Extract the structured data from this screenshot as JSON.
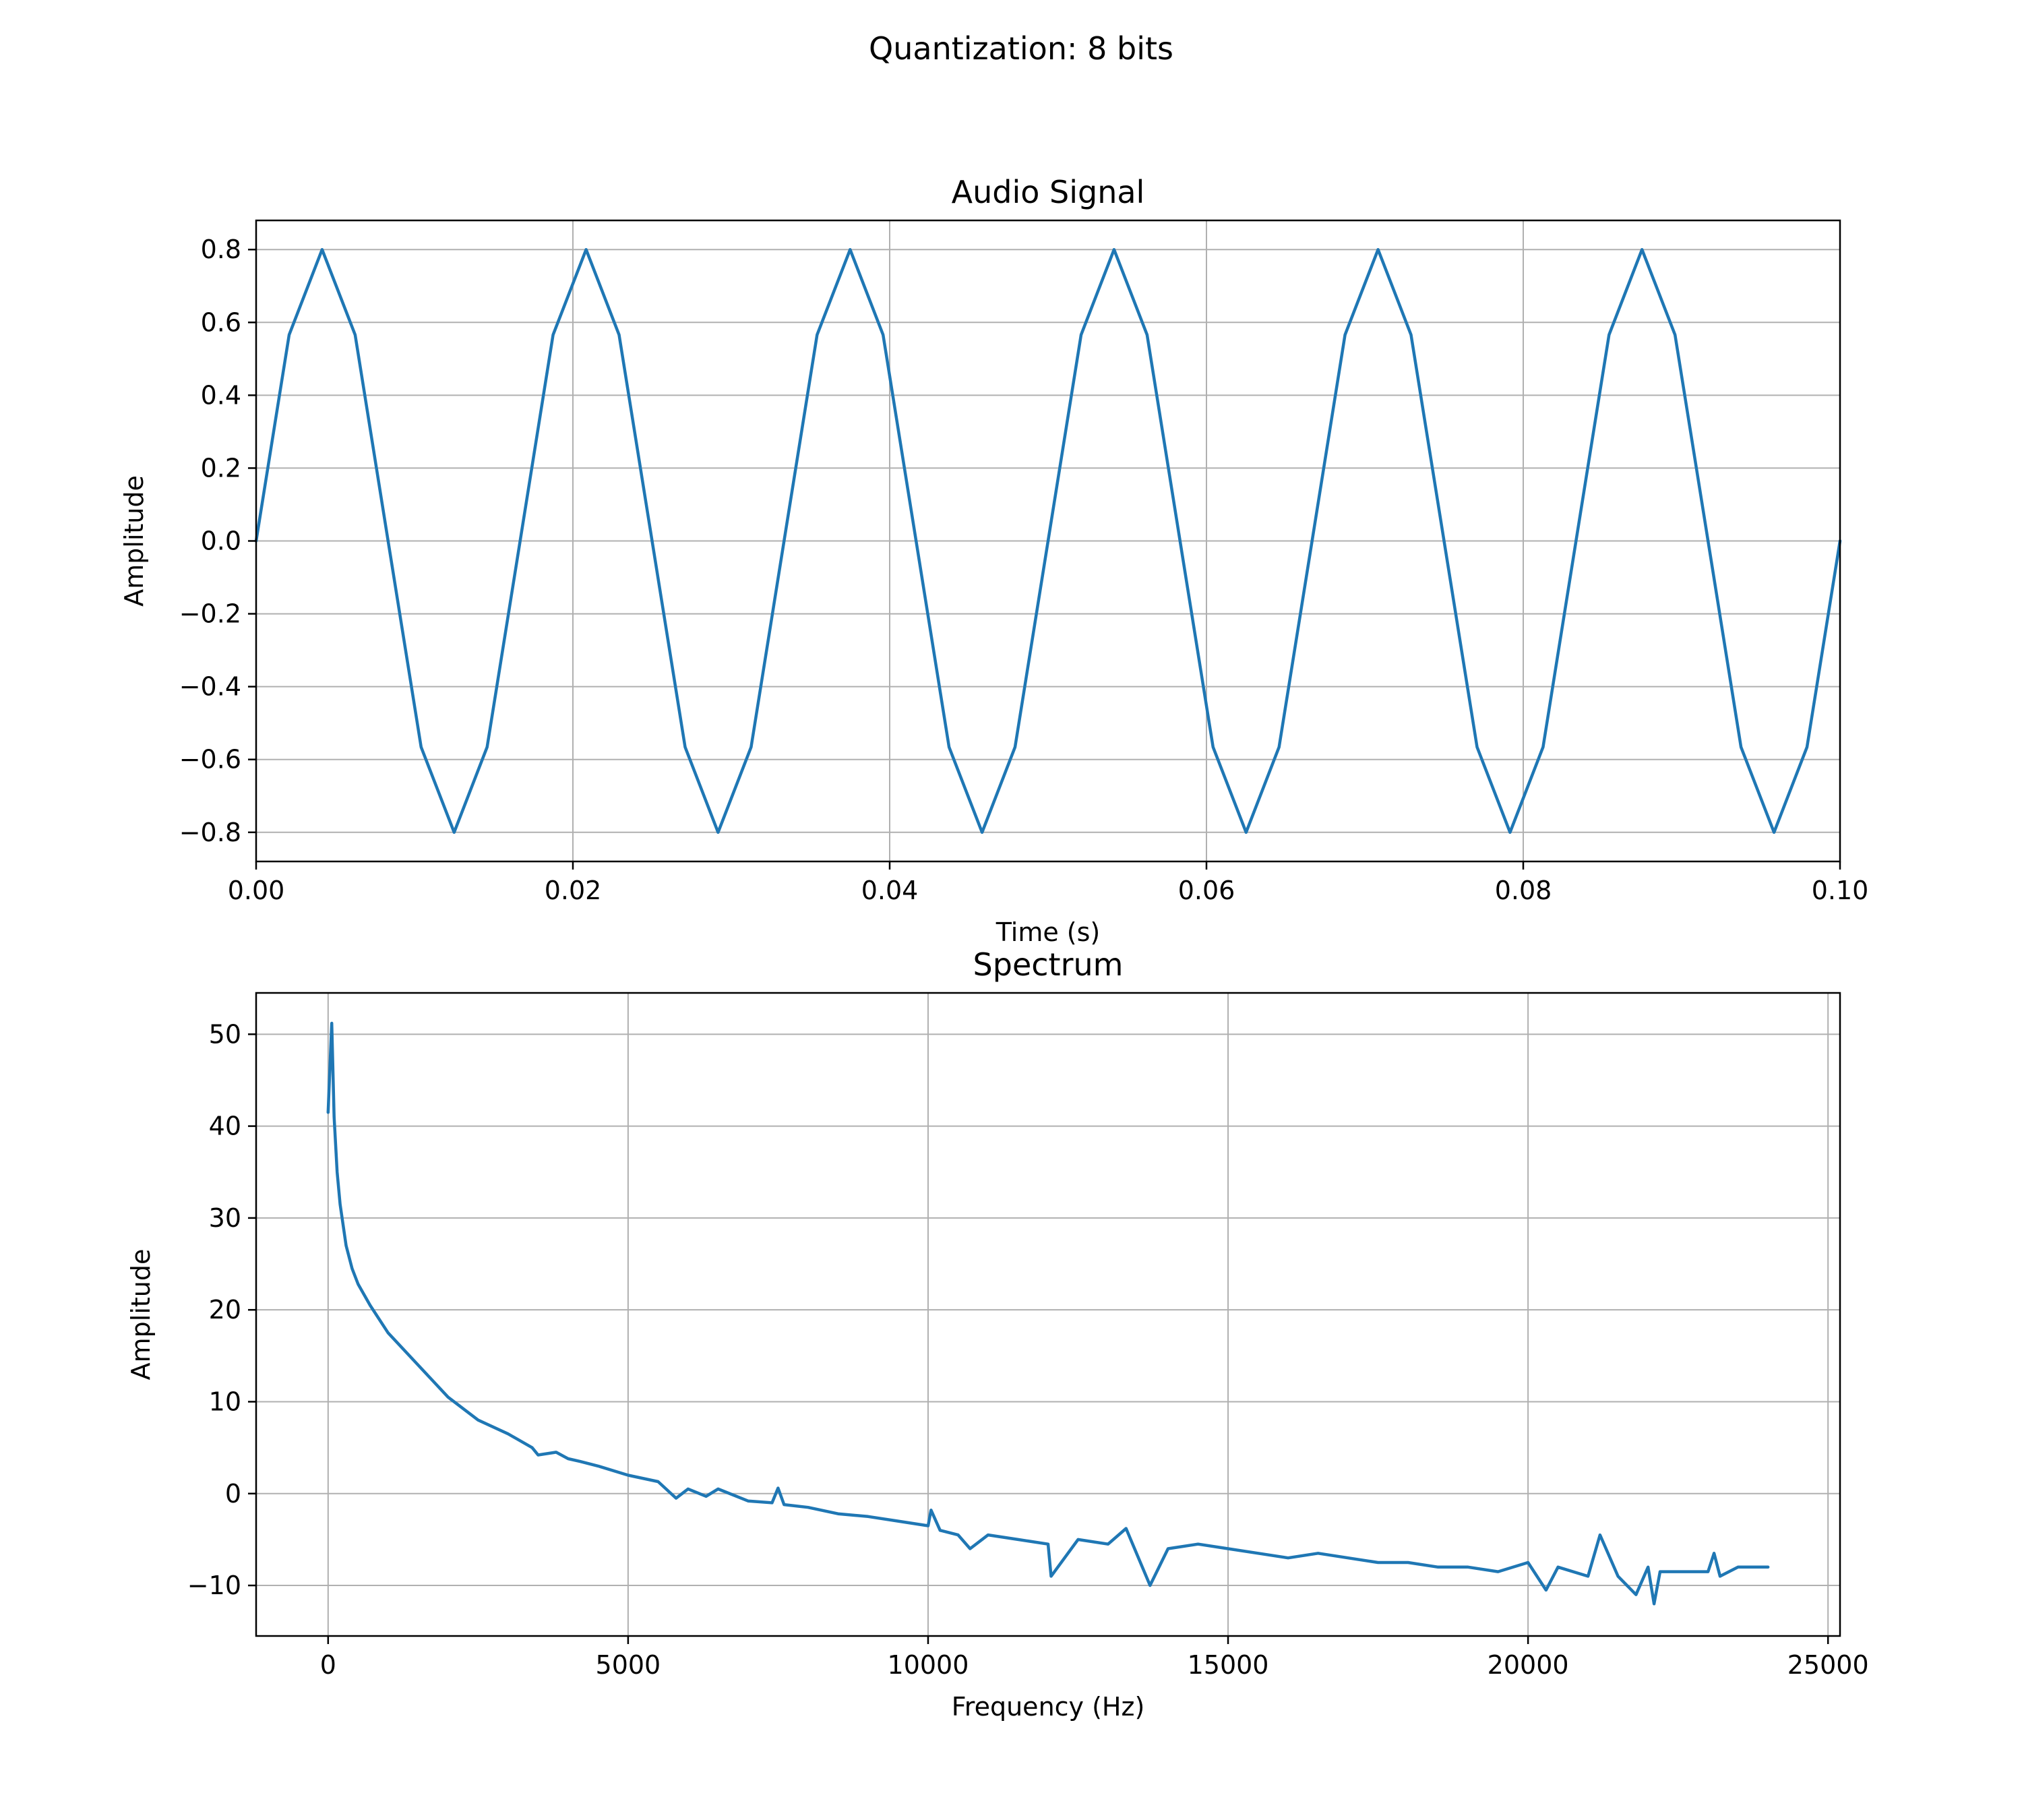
{
  "figure": {
    "suptitle": "Quantization: 8 bits"
  },
  "colors": {
    "line": "#1f77b4",
    "grid": "#b0b0b0",
    "axes": "#000000"
  },
  "chart_data": [
    {
      "type": "line",
      "title": "Audio Signal",
      "xlabel": "Time (s)",
      "ylabel": "Amplitude",
      "xlim": [
        0.0,
        0.1
      ],
      "ylim": [
        -0.88,
        0.88
      ],
      "xticks": [
        0.0,
        0.02,
        0.04,
        0.06,
        0.08,
        0.1
      ],
      "xtick_labels": [
        "0.00",
        "0.02",
        "0.04",
        "0.06",
        "0.08",
        "0.10"
      ],
      "yticks": [
        -0.8,
        -0.6,
        -0.4,
        -0.2,
        0.0,
        0.2,
        0.4,
        0.6,
        0.8
      ],
      "ytick_labels": [
        "−0.8",
        "−0.6",
        "−0.4",
        "−0.2",
        "0.0",
        "0.2",
        "0.4",
        "0.6",
        "0.8"
      ],
      "grid": true,
      "series": [
        {
          "x": [
            0,
            0.002083,
            0.004167,
            0.00625,
            0.008333,
            0.010417,
            0.0125,
            0.014583,
            0.016667,
            0.01875,
            0.020833,
            0.022917,
            0.025,
            0.027083,
            0.029167,
            0.03125,
            0.033333,
            0.035417,
            0.0375,
            0.039583,
            0.041667,
            0.04375,
            0.045833,
            0.047917,
            0.05,
            0.052083,
            0.054167,
            0.05625,
            0.058333,
            0.060417,
            0.0625,
            0.064583,
            0.066667,
            0.06875,
            0.070833,
            0.072917,
            0.075,
            0.077083,
            0.079167,
            0.08125,
            0.083333,
            0.085417,
            0.0875,
            0.089583,
            0.091667,
            0.09375,
            0.095833,
            0.097917,
            0.1
          ],
          "y": [
            0.0,
            0.566,
            0.8,
            0.566,
            0.0,
            -0.566,
            -0.8,
            -0.566,
            0.0,
            0.566,
            0.8,
            0.566,
            0.0,
            -0.566,
            -0.8,
            -0.566,
            0.0,
            0.566,
            0.8,
            0.566,
            0.0,
            -0.566,
            -0.8,
            -0.566,
            0.0,
            0.566,
            0.8,
            0.566,
            0.0,
            -0.566,
            -0.8,
            -0.566,
            0.0,
            0.566,
            0.8,
            0.566,
            0.0,
            -0.566,
            -0.8,
            -0.566,
            0.0,
            0.566,
            0.8,
            0.566,
            0.0,
            -0.566,
            -0.8,
            -0.566,
            0.0
          ]
        }
      ]
    },
    {
      "type": "line",
      "title": "Spectrum",
      "xlabel": "Frequency (Hz)",
      "ylabel": "Amplitude",
      "xlim": [
        -1200,
        25200
      ],
      "ylim": [
        -15.5,
        54.5
      ],
      "xticks": [
        0,
        5000,
        10000,
        15000,
        20000,
        25000
      ],
      "xtick_labels": [
        "0",
        "5000",
        "10000",
        "15000",
        "20000",
        "25000"
      ],
      "yticks": [
        -10,
        0,
        10,
        20,
        30,
        40,
        50
      ],
      "ytick_labels": [
        "−10",
        "0",
        "10",
        "20",
        "30",
        "40",
        "50"
      ],
      "grid": true,
      "series": [
        {
          "x": [
            0,
            60,
            100,
            150,
            200,
            300,
            400,
            500,
            700,
            1000,
            1500,
            2000,
            2500,
            3000,
            3400,
            3500,
            3800,
            4000,
            4200,
            4500,
            5000,
            5500,
            5800,
            6000,
            6300,
            6500,
            7000,
            7400,
            7500,
            7600,
            8000,
            8500,
            9000,
            9500,
            10000,
            10050,
            10200,
            10500,
            10700,
            11000,
            11500,
            12000,
            12050,
            12500,
            13000,
            13300,
            13700,
            14000,
            14500,
            15000,
            15500,
            16000,
            16500,
            17000,
            17500,
            18000,
            18500,
            19000,
            19500,
            20000,
            20300,
            20500,
            21000,
            21200,
            21500,
            21800,
            22000,
            22100,
            22200,
            22500,
            23000,
            23100,
            23200,
            23500,
            24000
          ],
          "y": [
            41.5,
            51.2,
            41.0,
            35.0,
            31.5,
            27.0,
            24.5,
            22.8,
            20.5,
            17.5,
            14.0,
            10.5,
            8.0,
            6.5,
            5.0,
            4.2,
            4.5,
            3.8,
            3.5,
            3.0,
            2.0,
            1.3,
            -0.5,
            0.5,
            -0.3,
            0.5,
            -0.8,
            -1.0,
            0.6,
            -1.2,
            -1.5,
            -2.2,
            -2.5,
            -3.0,
            -3.5,
            -1.8,
            -4.0,
            -4.5,
            -6.0,
            -4.5,
            -5.0,
            -5.5,
            -9.0,
            -5.0,
            -5.5,
            -3.8,
            -10.0,
            -6.0,
            -5.5,
            -6.0,
            -6.5,
            -7.0,
            -6.5,
            -7.0,
            -7.5,
            -7.5,
            -8.0,
            -8.0,
            -8.5,
            -7.5,
            -10.5,
            -8.0,
            -9.0,
            -4.5,
            -9.0,
            -11.0,
            -8.0,
            -12.0,
            -8.5,
            -8.5,
            -8.5,
            -6.5,
            -9.0,
            -8.0,
            -8.0
          ]
        }
      ]
    }
  ]
}
